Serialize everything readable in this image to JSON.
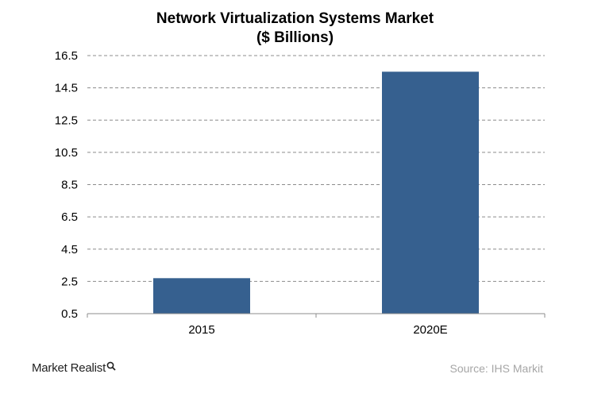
{
  "chart_data": {
    "type": "bar",
    "title": "Network Virtualization Systems Market",
    "subtitle": "($ Billions)",
    "categories": [
      "2015",
      "2020E"
    ],
    "values": [
      2.7,
      15.5
    ],
    "yticks": [
      "0.5",
      "2.5",
      "4.5",
      "6.5",
      "8.5",
      "10.5",
      "12.5",
      "14.5",
      "16.5"
    ],
    "ylim": [
      0.5,
      16.5
    ],
    "xlabel": "",
    "ylabel": "",
    "grid": true,
    "bar_color": "#36608f"
  },
  "footer": {
    "logo_text": "Market Realist",
    "source": "Source:  IHS Markit"
  }
}
